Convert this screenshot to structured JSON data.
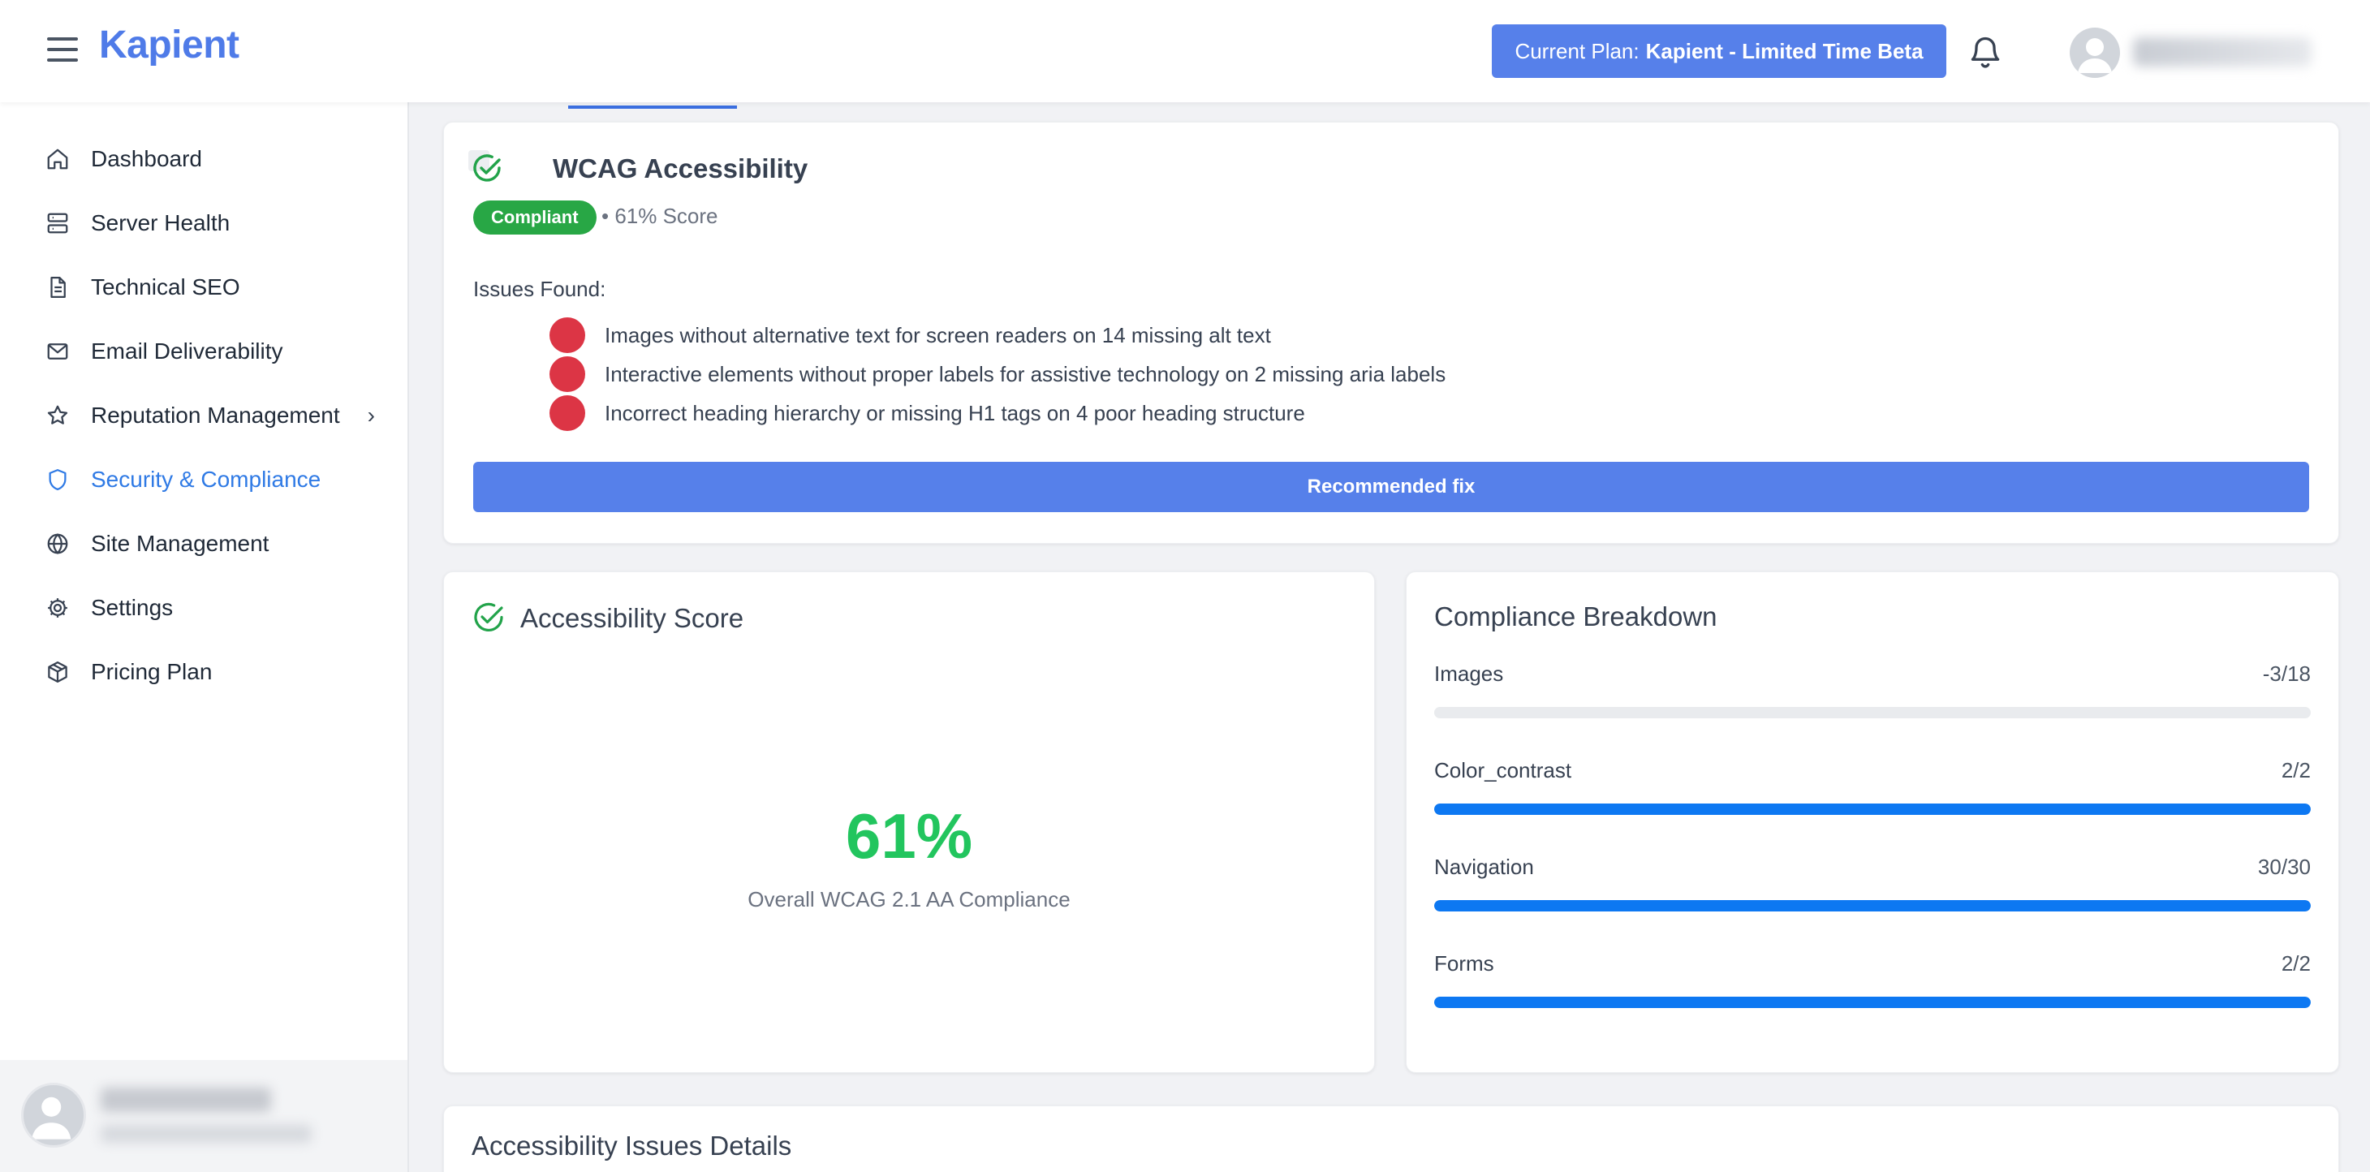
{
  "header": {
    "logo": "Kapient",
    "plan_prefix": "Current Plan:",
    "plan_name": "Kapient - Limited Time Beta"
  },
  "sidebar": {
    "items": [
      {
        "label": "Dashboard",
        "icon": "home-icon"
      },
      {
        "label": "Server Health",
        "icon": "server-icon"
      },
      {
        "label": "Technical SEO",
        "icon": "document-icon"
      },
      {
        "label": "Email Deliverability",
        "icon": "mail-icon"
      },
      {
        "label": "Reputation Management",
        "icon": "star-icon",
        "has_submenu": true
      },
      {
        "label": "Security & Compliance",
        "icon": "shield-icon",
        "active": true
      },
      {
        "label": "Site Management",
        "icon": "globe-icon"
      },
      {
        "label": "Settings",
        "icon": "gear-icon"
      },
      {
        "label": "Pricing Plan",
        "icon": "package-icon"
      }
    ]
  },
  "wcag": {
    "title": "WCAG Accessibility",
    "badge": "Compliant",
    "score_text": "• 61% Score",
    "issues_label": "Issues Found:",
    "issues": [
      "Images without alternative text for screen readers on 14 missing alt text",
      "Interactive elements without proper labels for assistive technology on 2 missing aria labels",
      "Incorrect heading hierarchy or missing H1 tags on 4 poor heading structure"
    ],
    "fix_button": "Recommended fix"
  },
  "score_card": {
    "title": "Accessibility Score",
    "value": "61%",
    "subtitle": "Overall WCAG 2.1 AA Compliance"
  },
  "breakdown": {
    "title": "Compliance Breakdown",
    "rows": [
      {
        "label": "Images",
        "value": "-3/18",
        "fill": 0
      },
      {
        "label": "Color_contrast",
        "value": "2/2",
        "fill": 1
      },
      {
        "label": "Navigation",
        "value": "30/30",
        "fill": 1
      },
      {
        "label": "Forms",
        "value": "2/2",
        "fill": 1
      }
    ]
  },
  "details": {
    "title": "Accessibility Issues Details"
  },
  "colors": {
    "brand": "#4f7be8",
    "primary_button": "#5680ea",
    "active_nav": "#2f7ae5",
    "success": "#28a745",
    "score": "#22c55e",
    "danger": "#dc3545",
    "progress": "#0d78f2"
  }
}
